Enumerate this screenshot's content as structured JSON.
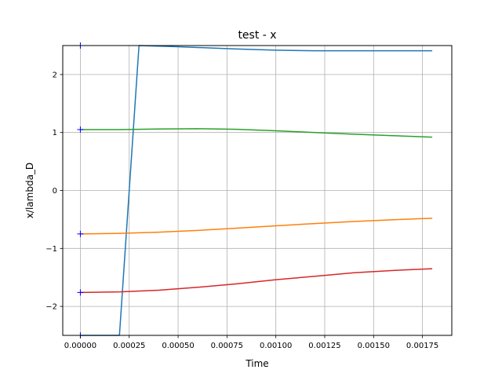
{
  "chart_data": {
    "type": "line",
    "title": "test - x",
    "xlabel": "Time",
    "ylabel": "x/lambda_D",
    "xlim": [
      -9e-05,
      0.0019
    ],
    "ylim": [
      -2.5,
      2.5
    ],
    "grid": true,
    "x_ticks": [
      0.0,
      0.00025,
      0.0005,
      0.00075,
      0.001,
      0.00125,
      0.0015,
      0.00175
    ],
    "x_tick_labels": [
      "0.00000",
      "0.00025",
      "0.00050",
      "0.00075",
      "0.00100",
      "0.00125",
      "0.00150",
      "0.00175"
    ],
    "y_ticks": [
      -2,
      -1,
      0,
      1,
      2
    ],
    "y_tick_labels": [
      "−2",
      "−1",
      "0",
      "1",
      "2"
    ],
    "series": [
      {
        "color": "#1f77b4",
        "x": [
          0.0,
          0.0002,
          0.0003,
          0.0005,
          0.0008,
          0.001,
          0.0012,
          0.0015,
          0.0018
        ],
        "y": [
          -2.5,
          -2.5,
          2.5,
          2.48,
          2.44,
          2.42,
          2.41,
          2.41,
          2.41
        ]
      },
      {
        "color": "#2ca02c",
        "x": [
          0.0,
          0.0002,
          0.0004,
          0.0006,
          0.0008,
          0.001,
          0.0012,
          0.0014,
          0.0016,
          0.0018
        ],
        "y": [
          1.05,
          1.05,
          1.06,
          1.065,
          1.055,
          1.03,
          1.0,
          0.97,
          0.945,
          0.92
        ]
      },
      {
        "color": "#ff7f0e",
        "x": [
          0.0,
          0.0002,
          0.0004,
          0.0006,
          0.0008,
          0.001,
          0.0012,
          0.0014,
          0.0016,
          0.0018
        ],
        "y": [
          -0.75,
          -0.74,
          -0.72,
          -0.69,
          -0.65,
          -0.61,
          -0.57,
          -0.535,
          -0.505,
          -0.48
        ]
      },
      {
        "color": "#d62728",
        "x": [
          0.0,
          0.0002,
          0.0004,
          0.0006,
          0.0008,
          0.001,
          0.0012,
          0.0014,
          0.0016,
          0.0018
        ],
        "y": [
          -1.76,
          -1.75,
          -1.72,
          -1.67,
          -1.61,
          -1.54,
          -1.48,
          -1.42,
          -1.38,
          -1.35
        ]
      }
    ],
    "markers": {
      "color": "#0000ff",
      "symbol": "+",
      "x": [
        0.0,
        0.0,
        0.0,
        0.0,
        0.0
      ],
      "y": [
        -2.5,
        -1.76,
        -0.75,
        1.05,
        2.5
      ]
    }
  }
}
